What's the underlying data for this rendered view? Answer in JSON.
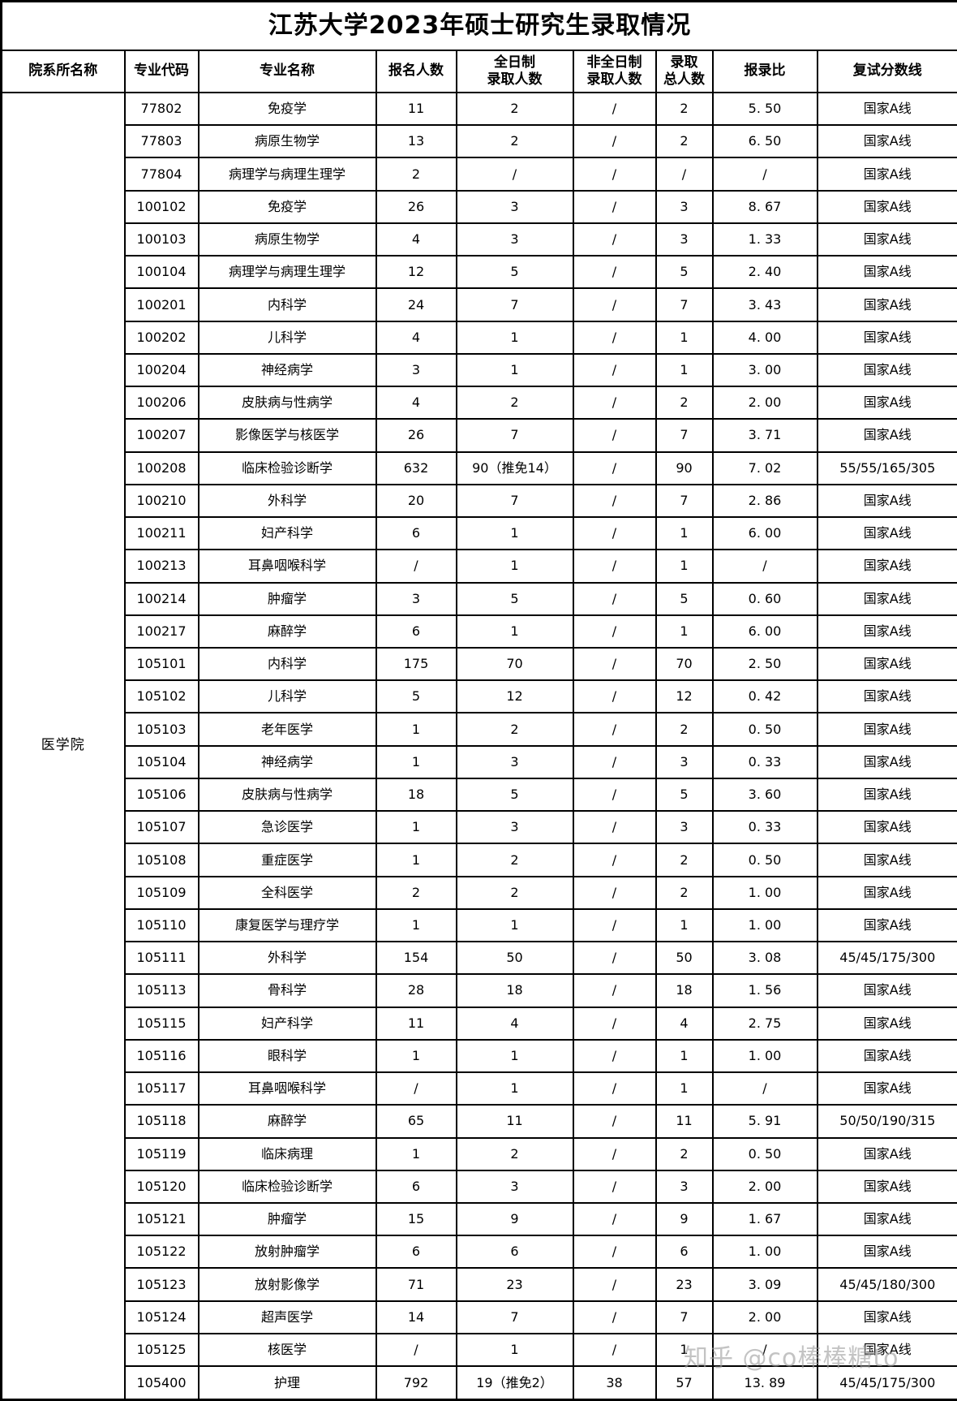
{
  "title": "江苏大学2023年硕士研究生录取情况",
  "watermark": "知乎 @co棒棒糖to",
  "columns": [
    "院系所名称",
    "专业代码",
    "专业名称",
    "报名人数",
    "全日制\n录取人数",
    "非全日制\n录取人数",
    "录取\n总人数",
    "报录比",
    "复试分数线"
  ],
  "department": "医学院",
  "rows": [
    [
      "77802",
      "免疫学",
      "11",
      "2",
      "/",
      "2",
      "5. 50",
      "国家A线"
    ],
    [
      "77803",
      "病原生物学",
      "13",
      "2",
      "/",
      "2",
      "6. 50",
      "国家A线"
    ],
    [
      "77804",
      "病理学与病理生理学",
      "2",
      "/",
      "/",
      "/",
      "/",
      "国家A线"
    ],
    [
      "100102",
      "免疫学",
      "26",
      "3",
      "/",
      "3",
      "8. 67",
      "国家A线"
    ],
    [
      "100103",
      "病原生物学",
      "4",
      "3",
      "/",
      "3",
      "1. 33",
      "国家A线"
    ],
    [
      "100104",
      "病理学与病理生理学",
      "12",
      "5",
      "/",
      "5",
      "2. 40",
      "国家A线"
    ],
    [
      "100201",
      "内科学",
      "24",
      "7",
      "/",
      "7",
      "3. 43",
      "国家A线"
    ],
    [
      "100202",
      "儿科学",
      "4",
      "1",
      "/",
      "1",
      "4. 00",
      "国家A线"
    ],
    [
      "100204",
      "神经病学",
      "3",
      "1",
      "/",
      "1",
      "3. 00",
      "国家A线"
    ],
    [
      "100206",
      "皮肤病与性病学",
      "4",
      "2",
      "/",
      "2",
      "2. 00",
      "国家A线"
    ],
    [
      "100207",
      "影像医学与核医学",
      "26",
      "7",
      "/",
      "7",
      "3. 71",
      "国家A线"
    ],
    [
      "100208",
      "临床检验诊断学",
      "632",
      "90（推免14）",
      "/",
      "90",
      "7. 02",
      "55/55/165/305"
    ],
    [
      "100210",
      "外科学",
      "20",
      "7",
      "/",
      "7",
      "2. 86",
      "国家A线"
    ],
    [
      "100211",
      "妇产科学",
      "6",
      "1",
      "/",
      "1",
      "6. 00",
      "国家A线"
    ],
    [
      "100213",
      "耳鼻咽喉科学",
      "/",
      "1",
      "/",
      "1",
      "/",
      "国家A线"
    ],
    [
      "100214",
      "肿瘤学",
      "3",
      "5",
      "/",
      "5",
      "0. 60",
      "国家A线"
    ],
    [
      "100217",
      "麻醉学",
      "6",
      "1",
      "/",
      "1",
      "6. 00",
      "国家A线"
    ],
    [
      "105101",
      "内科学",
      "175",
      "70",
      "/",
      "70",
      "2. 50",
      "国家A线"
    ],
    [
      "105102",
      "儿科学",
      "5",
      "12",
      "/",
      "12",
      "0. 42",
      "国家A线"
    ],
    [
      "105103",
      "老年医学",
      "1",
      "2",
      "/",
      "2",
      "0. 50",
      "国家A线"
    ],
    [
      "105104",
      "神经病学",
      "1",
      "3",
      "/",
      "3",
      "0. 33",
      "国家A线"
    ],
    [
      "105106",
      "皮肤病与性病学",
      "18",
      "5",
      "/",
      "5",
      "3. 60",
      "国家A线"
    ],
    [
      "105107",
      "急诊医学",
      "1",
      "3",
      "/",
      "3",
      "0. 33",
      "国家A线"
    ],
    [
      "105108",
      "重症医学",
      "1",
      "2",
      "/",
      "2",
      "0. 50",
      "国家A线"
    ],
    [
      "105109",
      "全科医学",
      "2",
      "2",
      "/",
      "2",
      "1. 00",
      "国家A线"
    ],
    [
      "105110",
      "康复医学与理疗学",
      "1",
      "1",
      "/",
      "1",
      "1. 00",
      "国家A线"
    ],
    [
      "105111",
      "外科学",
      "154",
      "50",
      "/",
      "50",
      "3. 08",
      "45/45/175/300"
    ],
    [
      "105113",
      "骨科学",
      "28",
      "18",
      "/",
      "18",
      "1. 56",
      "国家A线"
    ],
    [
      "105115",
      "妇产科学",
      "11",
      "4",
      "/",
      "4",
      "2. 75",
      "国家A线"
    ],
    [
      "105116",
      "眼科学",
      "1",
      "1",
      "/",
      "1",
      "1. 00",
      "国家A线"
    ],
    [
      "105117",
      "耳鼻咽喉科学",
      "/",
      "1",
      "/",
      "1",
      "/",
      "国家A线"
    ],
    [
      "105118",
      "麻醉学",
      "65",
      "11",
      "/",
      "11",
      "5. 91",
      "50/50/190/315"
    ],
    [
      "105119",
      "临床病理",
      "1",
      "2",
      "/",
      "2",
      "0. 50",
      "国家A线"
    ],
    [
      "105120",
      "临床检验诊断学",
      "6",
      "3",
      "/",
      "3",
      "2. 00",
      "国家A线"
    ],
    [
      "105121",
      "肿瘤学",
      "15",
      "9",
      "/",
      "9",
      "1. 67",
      "国家A线"
    ],
    [
      "105122",
      "放射肿瘤学",
      "6",
      "6",
      "/",
      "6",
      "1. 00",
      "国家A线"
    ],
    [
      "105123",
      "放射影像学",
      "71",
      "23",
      "/",
      "23",
      "3. 09",
      "45/45/180/300"
    ],
    [
      "105124",
      "超声医学",
      "14",
      "7",
      "/",
      "7",
      "2. 00",
      "国家A线"
    ],
    [
      "105125",
      "核医学",
      "/",
      "1",
      "/",
      "1",
      "/",
      "国家A线"
    ],
    [
      "105400",
      "护理",
      "792",
      "19（推免2）",
      "38",
      "57",
      "13. 89",
      "45/45/175/300"
    ]
  ]
}
